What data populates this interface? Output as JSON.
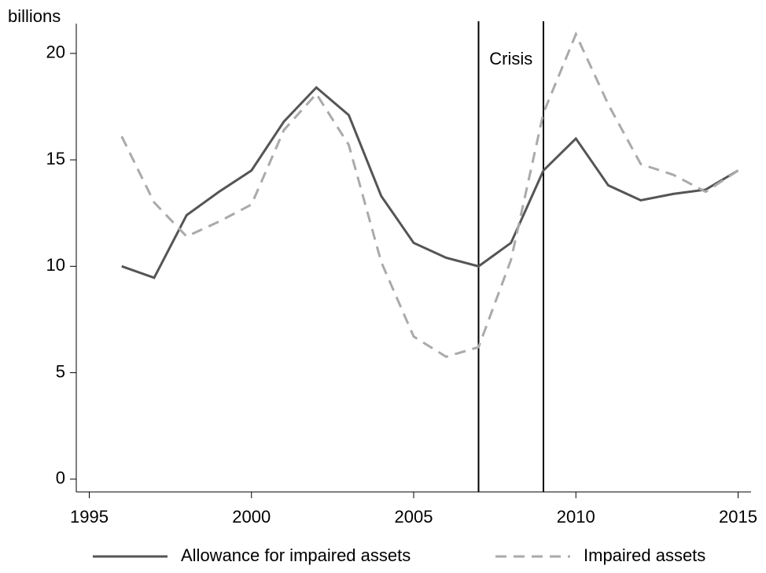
{
  "chart_data": {
    "type": "line",
    "y_label": "billions",
    "annotation": "Crisis",
    "vlines": [
      2007,
      2009
    ],
    "x": [
      1996,
      1997,
      1998,
      1999,
      2000,
      2001,
      2002,
      2003,
      2004,
      2005,
      2006,
      2007,
      2008,
      2009,
      2010,
      2011,
      2012,
      2013,
      2014,
      2015
    ],
    "series": [
      {
        "name": "Allowance for impaired assets",
        "color": "#555555",
        "dash": false,
        "values": [
          10.0,
          9.46,
          12.4,
          13.5,
          14.5,
          16.8,
          18.4,
          17.1,
          13.3,
          11.1,
          10.4,
          10.0,
          11.1,
          14.5,
          16.0,
          13.8,
          13.1,
          13.4,
          13.6,
          14.5
        ]
      },
      {
        "name": "Impaired assets",
        "color": "#aaaaaa",
        "dash": true,
        "values": [
          16.1,
          13.0,
          11.4,
          12.1,
          12.9,
          16.4,
          18.1,
          15.7,
          10.2,
          6.7,
          5.75,
          6.2,
          10.3,
          17.2,
          20.9,
          17.6,
          14.8,
          14.3,
          13.5,
          14.5
        ]
      }
    ],
    "xlim": [
      1994.6,
      2015.4
    ],
    "xticks": [
      1995,
      2000,
      2005,
      2010,
      2015
    ],
    "ylim": [
      -0.6,
      21.4
    ],
    "yticks": [
      0,
      5,
      10,
      15,
      20
    ],
    "grid": false,
    "legend": "bottom"
  }
}
